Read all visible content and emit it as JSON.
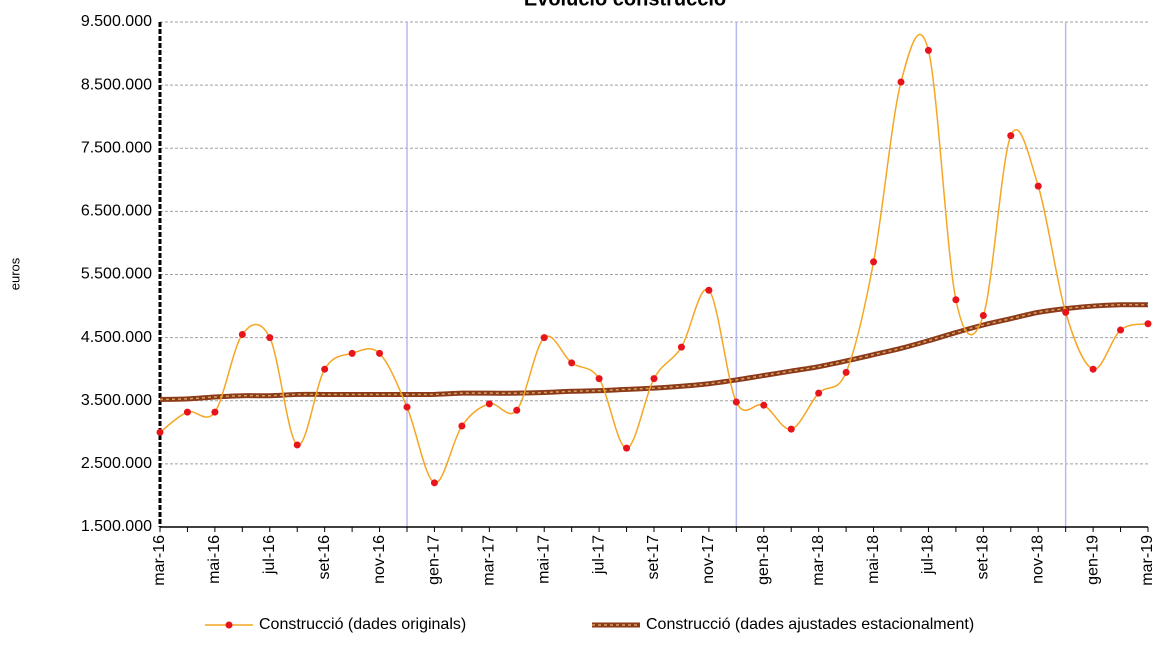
{
  "chart_data": {
    "type": "line",
    "title": "Evolució construcció",
    "ylabel": "euros",
    "categories": [
      "mar-16",
      null,
      "mai-16",
      null,
      "jul-16",
      null,
      "set-16",
      null,
      "nov-16",
      null,
      "gen-17",
      null,
      "mar-17",
      null,
      "mai-17",
      null,
      "jul-17",
      null,
      "set-17",
      null,
      "nov-17",
      null,
      "gen-18",
      null,
      "mar-18",
      null,
      "mai-18",
      null,
      "jul-18",
      null,
      "set-18",
      null,
      "nov-18",
      null,
      "gen-19",
      null,
      "mar-19"
    ],
    "series": [
      {
        "name": "Construcció (dades originals)",
        "color": "#f5a623",
        "marker_color": "#e8141b",
        "values": [
          3000000,
          3320000,
          3320000,
          4550000,
          4500000,
          2800000,
          4000000,
          4250000,
          4250000,
          3400000,
          2200000,
          3100000,
          3450000,
          3350000,
          4500000,
          4100000,
          3850000,
          2750000,
          3850000,
          4350000,
          5250000,
          3480000,
          3430000,
          3050000,
          3620000,
          3950000,
          5700000,
          8550000,
          9050000,
          5100000,
          4850000,
          7700000,
          6900000,
          4900000,
          4000000,
          4620000,
          4720000
        ]
      },
      {
        "name": "Construcció (dades ajustades estacionalment)",
        "color": "#8b3a1a",
        "values": [
          3520000,
          3530000,
          3560000,
          3580000,
          3580000,
          3600000,
          3600000,
          3600000,
          3600000,
          3600000,
          3600000,
          3620000,
          3620000,
          3620000,
          3630000,
          3650000,
          3660000,
          3680000,
          3700000,
          3730000,
          3770000,
          3830000,
          3900000,
          3970000,
          4040000,
          4130000,
          4230000,
          4330000,
          4450000,
          4580000,
          4700000,
          4800000,
          4900000,
          4960000,
          5000000,
          5020000,
          5020000
        ]
      }
    ],
    "ylim": [
      1500000,
      9500000
    ],
    "yticks": [
      {
        "value": 1500000,
        "label": "1.500.000"
      },
      {
        "value": 2500000,
        "label": "2.500.000"
      },
      {
        "value": 3500000,
        "label": "3.500.000"
      },
      {
        "value": 4500000,
        "label": "4.500.000"
      },
      {
        "value": 5500000,
        "label": "5.500.000"
      },
      {
        "value": 6500000,
        "label": "6.500.000"
      },
      {
        "value": 7500000,
        "label": "7.500.000"
      },
      {
        "value": 8500000,
        "label": "8.500.000"
      },
      {
        "value": 9500000,
        "label": "9.500.000"
      }
    ],
    "grid": true
  }
}
